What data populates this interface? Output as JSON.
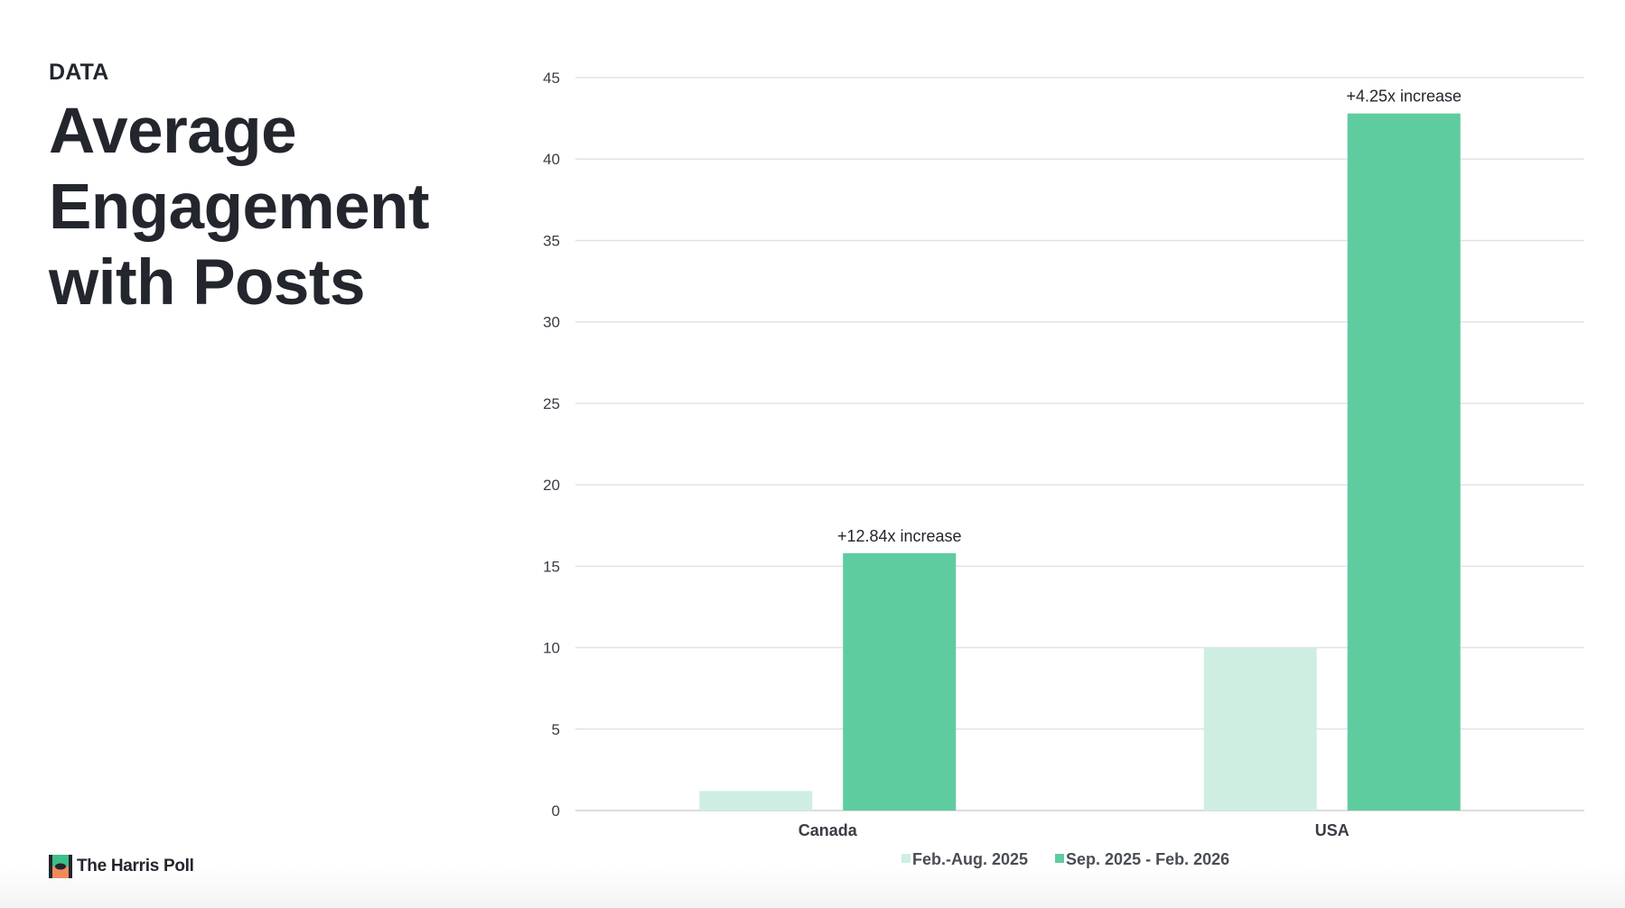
{
  "header": {
    "eyebrow": "DATA",
    "title": "Average Engagement with Posts"
  },
  "brand": {
    "name": "The Harris Poll"
  },
  "colors": {
    "series_light": "#cfeee2",
    "series_dark": "#5ecc9f",
    "gridline": "#e2e3e5",
    "text": "#23262d",
    "logo_green": "#3dbf8a",
    "logo_orange": "#f08a5d"
  },
  "chart_data": {
    "type": "bar",
    "categories": [
      "Canada",
      "USA"
    ],
    "series": [
      {
        "name": "Feb.-Aug. 2025",
        "values": [
          1.2,
          10.0
        ],
        "color": "#cfeee2"
      },
      {
        "name": "Sep. 2025 - Feb. 2026",
        "values": [
          15.8,
          42.8
        ],
        "color": "#5ecc9f"
      }
    ],
    "annotations": [
      "+12.84x increase",
      "+4.25x increase"
    ],
    "ylim": [
      0,
      45
    ],
    "yticks": [
      0,
      5,
      10,
      15,
      20,
      25,
      30,
      35,
      40,
      45
    ],
    "grid": true,
    "legend": "bottom-center"
  }
}
